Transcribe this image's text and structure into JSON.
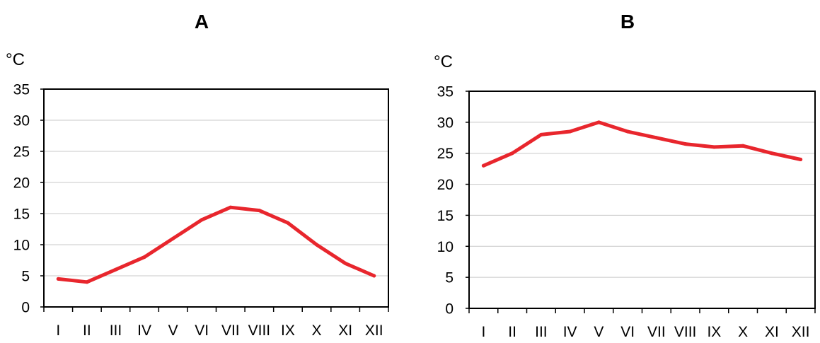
{
  "chart_data": [
    {
      "type": "line",
      "title": "A",
      "ylabel": "°C",
      "ylim": [
        0,
        35
      ],
      "yticks": [
        0,
        5,
        10,
        15,
        20,
        25,
        30,
        35
      ],
      "categories": [
        "I",
        "II",
        "III",
        "IV",
        "V",
        "VI",
        "VII",
        "VIII",
        "IX",
        "X",
        "XI",
        "XII"
      ],
      "series": [
        {
          "values": [
            4.5,
            4,
            6,
            8,
            11,
            14,
            16,
            15.5,
            13.5,
            10,
            7,
            5
          ]
        }
      ],
      "grid": true,
      "line_color": "#e8262d"
    },
    {
      "type": "line",
      "title": "B",
      "ylabel": "°C",
      "ylim": [
        0,
        35
      ],
      "yticks": [
        0,
        5,
        10,
        15,
        20,
        25,
        30,
        35
      ],
      "categories": [
        "I",
        "II",
        "III",
        "IV",
        "V",
        "VI",
        "VII",
        "VIII",
        "IX",
        "X",
        "XI",
        "XII"
      ],
      "series": [
        {
          "values": [
            23,
            25,
            28,
            28.5,
            30,
            28.5,
            27.5,
            26.5,
            26,
            26.2,
            25,
            24
          ]
        }
      ],
      "grid": true,
      "line_color": "#e8262d"
    }
  ]
}
